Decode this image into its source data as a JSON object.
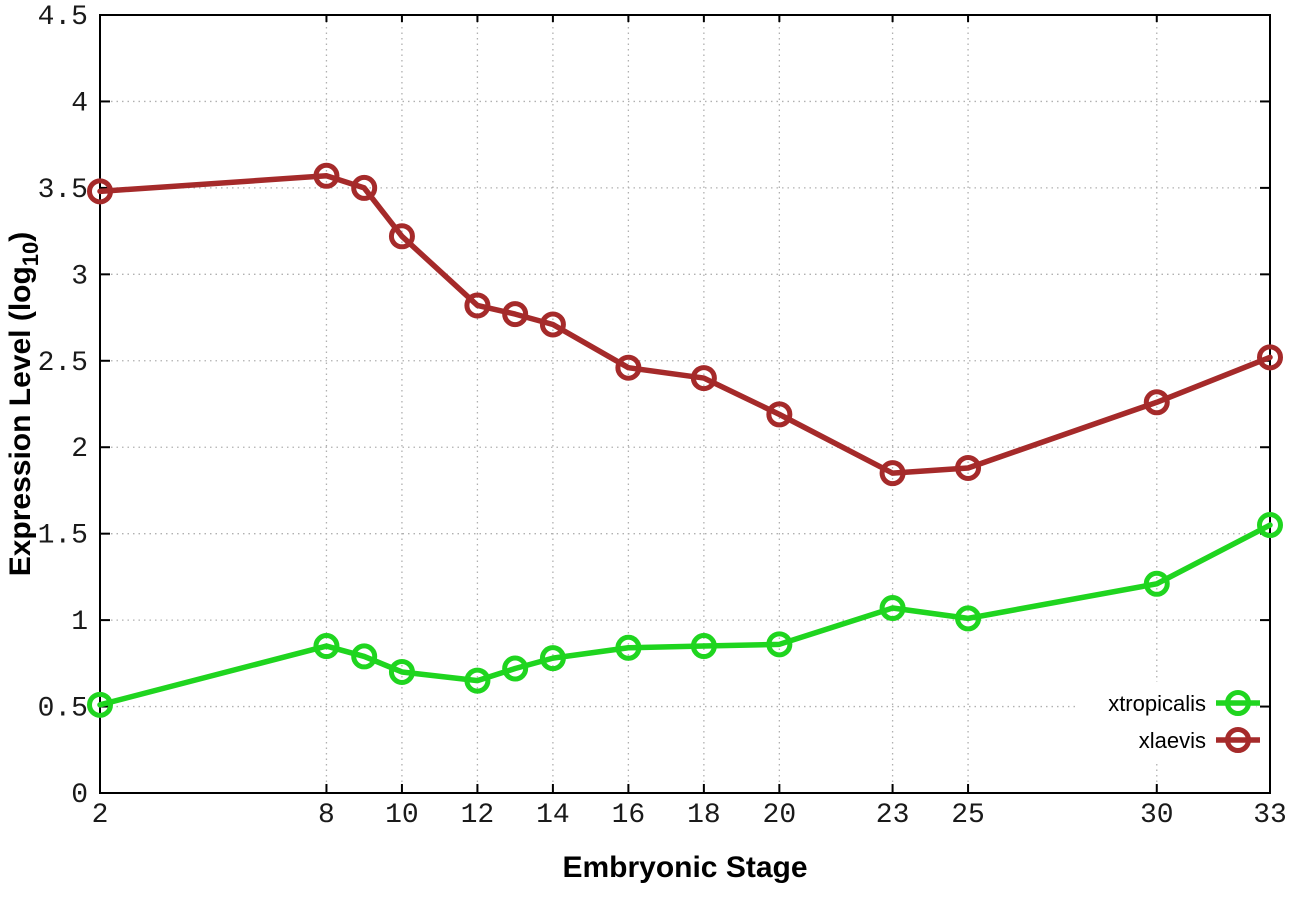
{
  "figure": {
    "ylabel_main": "Expression Level (log",
    "ylabel_sub": "10",
    "ylabel_close": ")"
  },
  "chart_data": {
    "type": "line",
    "title": "",
    "xlabel": "Embryonic Stage",
    "ylabel": "Expression Level (log10)",
    "x": [
      2,
      8,
      9,
      10,
      12,
      13,
      14,
      16,
      18,
      20,
      23,
      25,
      30,
      33
    ],
    "series": [
      {
        "name": "xtropicalis",
        "color": "#1fd51f",
        "values": [
          0.51,
          0.85,
          0.79,
          0.7,
          0.65,
          0.72,
          0.78,
          0.84,
          0.85,
          0.86,
          1.07,
          1.01,
          1.21,
          1.55
        ]
      },
      {
        "name": "xlaevis",
        "color": "#a52a2a",
        "values": [
          3.48,
          3.57,
          3.5,
          3.22,
          2.82,
          2.77,
          2.71,
          2.46,
          2.4,
          2.19,
          1.85,
          1.88,
          2.26,
          2.52
        ]
      }
    ],
    "xticks": [
      2,
      8,
      10,
      12,
      14,
      16,
      18,
      20,
      23,
      25,
      30,
      33
    ],
    "yticks": [
      0,
      0.5,
      1,
      1.5,
      2,
      2.5,
      3,
      3.5,
      4,
      4.5
    ],
    "xlim": [
      2,
      33
    ],
    "ylim": [
      0,
      4.5
    ],
    "grid": true,
    "marker": "open-circle",
    "legend_position": "bottom-right",
    "axis_color": "#000000",
    "grid_color": "#b0b0b0"
  }
}
